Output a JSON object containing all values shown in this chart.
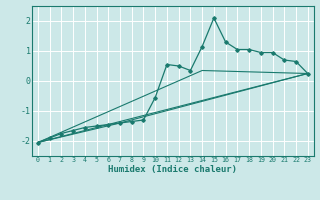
{
  "xlabel": "Humidex (Indice chaleur)",
  "ylabel": "",
  "xlim": [
    -0.5,
    23.5
  ],
  "ylim": [
    -2.5,
    2.5
  ],
  "yticks": [
    -2,
    -1,
    0,
    1,
    2
  ],
  "xticks": [
    0,
    1,
    2,
    3,
    4,
    5,
    6,
    7,
    8,
    9,
    10,
    11,
    12,
    13,
    14,
    15,
    16,
    17,
    18,
    19,
    20,
    21,
    22,
    23
  ],
  "bg_color": "#cce8e8",
  "grid_color": "#ffffff",
  "line_color": "#1a7a6e",
  "lines": [
    {
      "x": [
        0,
        1,
        2,
        3,
        4,
        5,
        6,
        7,
        8,
        9,
        10,
        11,
        12,
        13,
        14,
        15,
        16,
        17,
        18,
        19,
        20,
        21,
        22,
        23
      ],
      "y": [
        -2.05,
        -1.9,
        -1.75,
        -1.65,
        -1.55,
        -1.5,
        -1.45,
        -1.4,
        -1.35,
        -1.3,
        -0.55,
        0.55,
        0.5,
        0.35,
        1.15,
        2.1,
        1.3,
        1.05,
        1.05,
        0.95,
        0.95,
        0.7,
        0.65,
        0.25
      ],
      "marker": true
    },
    {
      "x": [
        0,
        23
      ],
      "y": [
        -2.05,
        0.25
      ],
      "marker": false
    },
    {
      "x": [
        0,
        14,
        23
      ],
      "y": [
        -2.05,
        0.35,
        0.25
      ],
      "marker": false
    },
    {
      "x": [
        0,
        7,
        23
      ],
      "y": [
        -2.05,
        -1.4,
        0.25
      ],
      "marker": false
    }
  ]
}
